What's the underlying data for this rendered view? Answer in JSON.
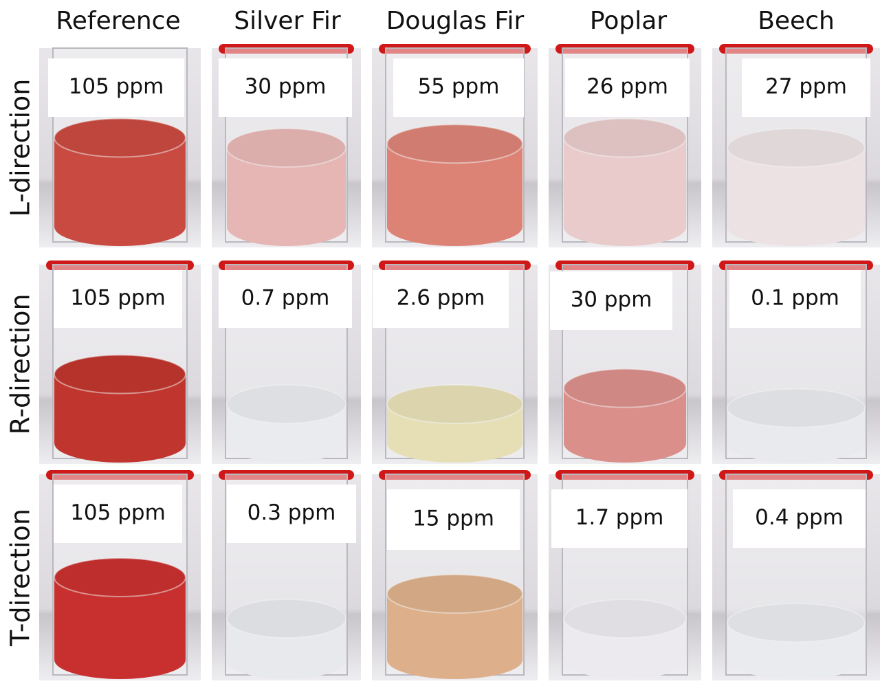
{
  "grid": {
    "columns": [
      "Reference",
      "Silver Fir",
      "Douglas Fir",
      "Poplar",
      "Beech"
    ],
    "rows": [
      {
        "label": "L-direction",
        "cells": [
          "105 ppm",
          "30 ppm",
          "55 ppm",
          "26 ppm",
          "27 ppm"
        ]
      },
      {
        "label": "R-direction",
        "cells": [
          "105 ppm",
          "0.7 ppm",
          "2.6 ppm",
          "30 ppm",
          "0.1 ppm"
        ]
      },
      {
        "label": "T-direction",
        "cells": [
          "105 ppm",
          "0.3 ppm",
          "15 ppm",
          "1.7 ppm",
          "0.4 ppm"
        ]
      }
    ]
  }
}
